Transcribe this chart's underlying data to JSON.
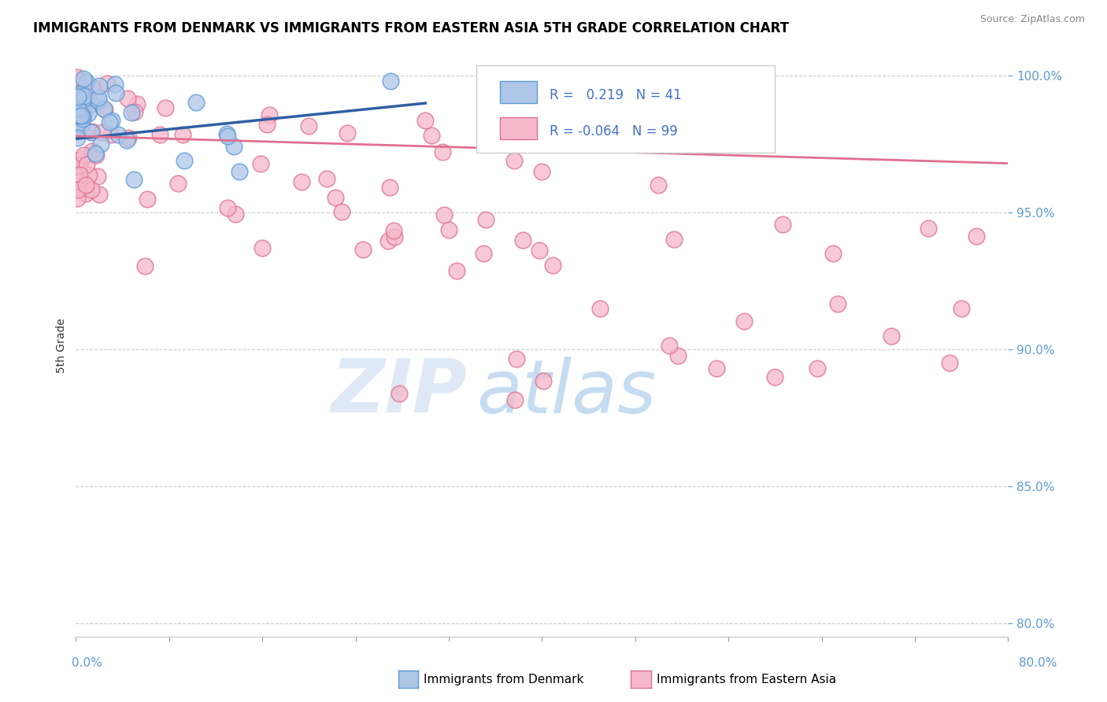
{
  "title": "IMMIGRANTS FROM DENMARK VS IMMIGRANTS FROM EASTERN ASIA 5TH GRADE CORRELATION CHART",
  "source": "Source: ZipAtlas.com",
  "ylabel": "5th Grade",
  "xlim": [
    0.0,
    0.8
  ],
  "ylim": [
    0.795,
    1.008
  ],
  "ytick_positions": [
    0.8,
    0.85,
    0.9,
    0.95,
    1.0
  ],
  "ytick_labels": [
    "80.0%",
    "85.0%",
    "90.0%",
    "95.0%",
    "100.0%"
  ],
  "xtick_positions": [
    0.0,
    0.08,
    0.16,
    0.24,
    0.32,
    0.4,
    0.48,
    0.56,
    0.64,
    0.72,
    0.8
  ],
  "denmark_color": "#aec6e8",
  "denmark_edge_color": "#5b9bd5",
  "denmark_line_color": "#2e5fa3",
  "eastern_asia_color": "#f5b8cb",
  "eastern_asia_edge_color": "#e07090",
  "eastern_asia_line_color": "#e07090",
  "R_denmark": 0.219,
  "N_denmark": 41,
  "R_eastern_asia": -0.064,
  "N_eastern_asia": 99,
  "watermark_zip": "ZIP",
  "watermark_atlas": "atlas",
  "legend_label_denmark": "Immigrants from Denmark",
  "legend_label_eastern_asia": "Immigrants from Eastern Asia",
  "dk_trend_x": [
    0.0,
    0.3
  ],
  "dk_trend_y": [
    0.977,
    0.99
  ],
  "ea_trend_x": [
    0.0,
    0.8
  ],
  "ea_trend_y": [
    0.978,
    0.968
  ]
}
